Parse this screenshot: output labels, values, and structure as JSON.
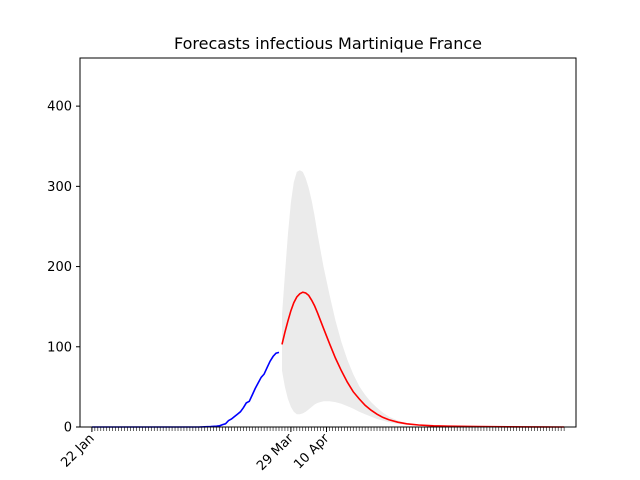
{
  "chart_data": {
    "type": "line",
    "title": "Forecasts infectious Martinique France",
    "xlabel": "",
    "ylabel": "",
    "x_axis": {
      "start_date": "22 Jan",
      "end_day": 159,
      "rotated_tick_labels": true
    },
    "ylim": [
      0,
      460
    ],
    "y_ticks": [
      0,
      100,
      200,
      300,
      400
    ],
    "x_tick_labels": [
      {
        "day": 0,
        "label": "22 Jan"
      },
      {
        "day": 67,
        "label": "29 Mar"
      },
      {
        "day": 79,
        "label": "10 Apr"
      }
    ],
    "grid": false,
    "legend": "none",
    "series": [
      {
        "role": "observed",
        "color": "#0000ff",
        "points": [
          [
            0,
            0
          ],
          [
            10,
            0
          ],
          [
            20,
            0
          ],
          [
            30,
            0
          ],
          [
            36,
            0
          ],
          [
            38,
            0.2
          ],
          [
            40,
            0.5
          ],
          [
            42,
            1
          ],
          [
            43,
            1.5
          ],
          [
            44,
            3
          ],
          [
            45,
            4
          ],
          [
            46,
            8
          ],
          [
            47,
            10
          ],
          [
            48,
            13
          ],
          [
            49,
            16
          ],
          [
            50,
            19
          ],
          [
            51,
            24
          ],
          [
            52,
            30
          ],
          [
            53,
            32
          ],
          [
            54,
            40
          ],
          [
            55,
            48
          ],
          [
            56,
            55
          ],
          [
            57,
            62
          ],
          [
            58,
            66
          ],
          [
            59,
            74
          ],
          [
            60,
            82
          ],
          [
            61,
            88
          ],
          [
            62,
            92
          ],
          [
            63,
            93
          ]
        ]
      },
      {
        "role": "forecast",
        "color": "#ff0000",
        "points": [
          [
            64,
            103
          ],
          [
            65,
            118
          ],
          [
            66,
            132
          ],
          [
            67,
            145
          ],
          [
            68,
            155
          ],
          [
            69,
            162
          ],
          [
            70,
            166
          ],
          [
            71,
            168
          ],
          [
            72,
            167
          ],
          [
            73,
            164
          ],
          [
            74,
            158
          ],
          [
            75,
            151
          ],
          [
            76,
            142
          ],
          [
            78,
            123
          ],
          [
            80,
            104
          ],
          [
            82,
            86
          ],
          [
            84,
            70
          ],
          [
            86,
            56
          ],
          [
            88,
            44
          ],
          [
            90,
            35
          ],
          [
            92,
            27
          ],
          [
            94,
            21
          ],
          [
            96,
            16
          ],
          [
            98,
            12
          ],
          [
            100,
            9
          ],
          [
            103,
            6
          ],
          [
            106,
            4
          ],
          [
            110,
            2.5
          ],
          [
            115,
            1.5
          ],
          [
            120,
            1
          ],
          [
            130,
            0.5
          ],
          [
            140,
            0.2
          ],
          [
            150,
            0.1
          ],
          [
            159,
            0
          ]
        ]
      }
    ],
    "band": {
      "color": "#ebebeb",
      "upper": [
        [
          64,
          140
        ],
        [
          65,
          190
        ],
        [
          66,
          240
        ],
        [
          67,
          280
        ],
        [
          68,
          305
        ],
        [
          69,
          318
        ],
        [
          70,
          320
        ],
        [
          71,
          318
        ],
        [
          72,
          310
        ],
        [
          73,
          298
        ],
        [
          74,
          282
        ],
        [
          75,
          263
        ],
        [
          76,
          240
        ],
        [
          78,
          200
        ],
        [
          80,
          165
        ],
        [
          82,
          133
        ],
        [
          84,
          106
        ],
        [
          86,
          84
        ],
        [
          88,
          66
        ],
        [
          90,
          51
        ],
        [
          92,
          40
        ],
        [
          94,
          31
        ],
        [
          96,
          24
        ],
        [
          98,
          18
        ],
        [
          100,
          13
        ],
        [
          103,
          8
        ],
        [
          106,
          5
        ],
        [
          110,
          3
        ],
        [
          115,
          1.5
        ],
        [
          120,
          1
        ],
        [
          130,
          0.5
        ],
        [
          159,
          0
        ]
      ],
      "lower": [
        [
          64,
          70
        ],
        [
          65,
          50
        ],
        [
          66,
          35
        ],
        [
          67,
          25
        ],
        [
          68,
          19
        ],
        [
          69,
          16
        ],
        [
          70,
          16
        ],
        [
          71,
          17
        ],
        [
          72,
          19
        ],
        [
          73,
          22
        ],
        [
          74,
          25
        ],
        [
          75,
          28
        ],
        [
          76,
          30
        ],
        [
          78,
          32
        ],
        [
          80,
          32
        ],
        [
          82,
          31
        ],
        [
          84,
          29
        ],
        [
          86,
          26
        ],
        [
          88,
          23
        ],
        [
          90,
          19
        ],
        [
          92,
          16
        ],
        [
          94,
          13
        ],
        [
          96,
          10
        ],
        [
          98,
          8
        ],
        [
          100,
          6
        ],
        [
          103,
          4
        ],
        [
          106,
          3
        ],
        [
          110,
          2
        ],
        [
          115,
          1
        ],
        [
          120,
          0.5
        ],
        [
          130,
          0.2
        ],
        [
          159,
          0
        ]
      ]
    }
  }
}
